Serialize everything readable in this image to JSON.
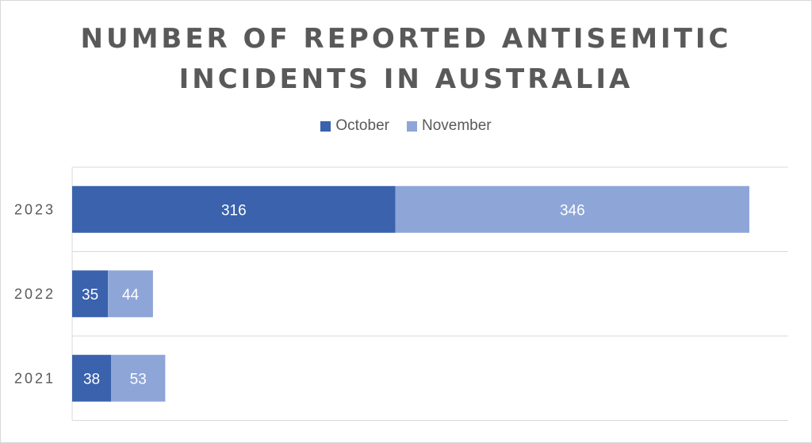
{
  "chart_data": {
    "type": "bar",
    "orientation": "horizontal",
    "stacked": true,
    "title": "NUMBER OF REPORTED ANTISEMITIC INCIDENTS IN AUSTRALIA",
    "categories": [
      "2023",
      "2022",
      "2021"
    ],
    "series": [
      {
        "name": "October",
        "values": [
          316,
          35,
          38
        ],
        "color": "#3a62ad"
      },
      {
        "name": "November",
        "values": [
          346,
          44,
          53
        ],
        "color": "#8ea5d8"
      }
    ],
    "xlim": [
      0,
      700
    ],
    "grid": true,
    "legend_position": "top"
  }
}
